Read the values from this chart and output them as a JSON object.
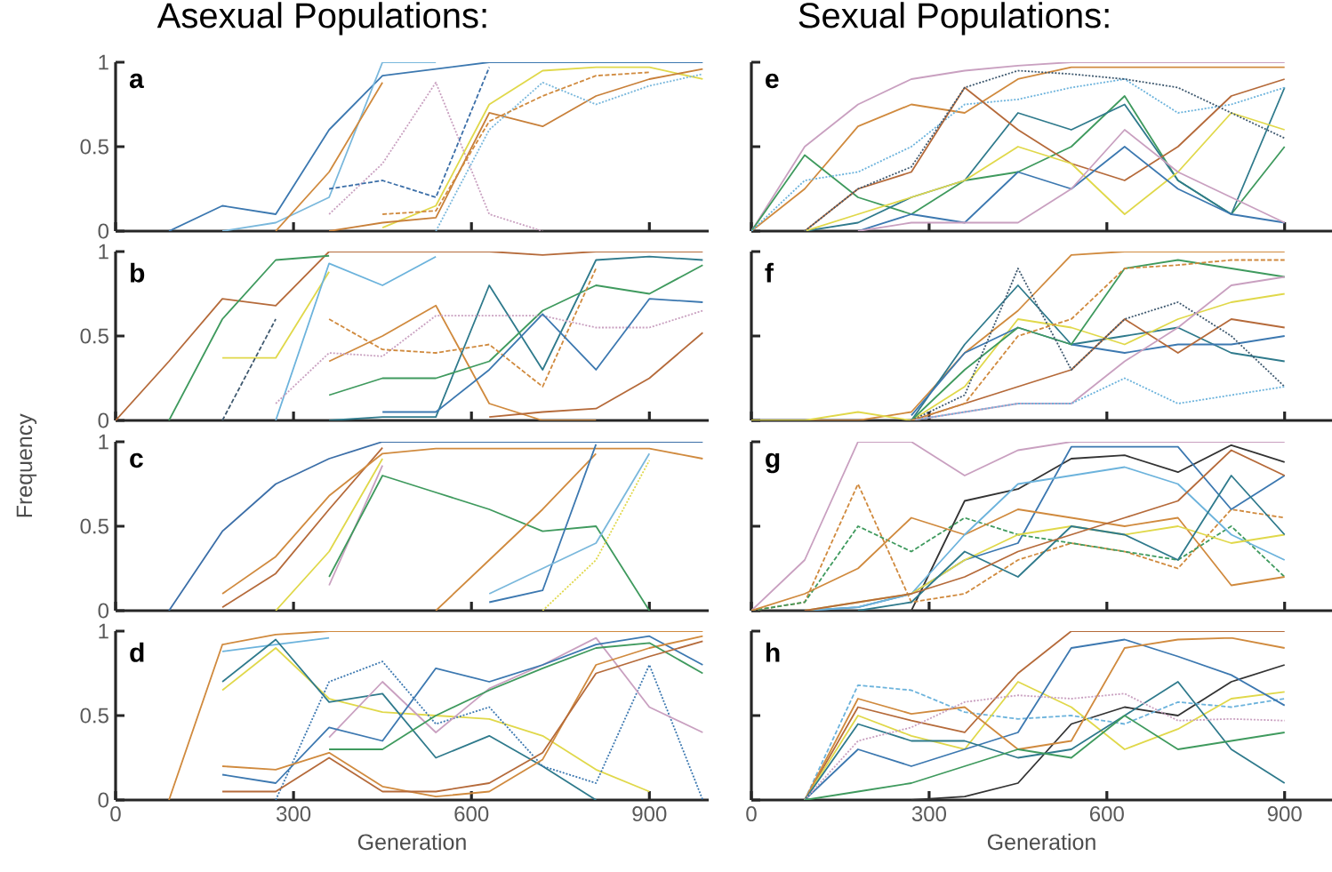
{
  "chart_data": [
    {
      "type": "line",
      "title": "Asexual Populations:",
      "annotations": [
        "a"
      ],
      "x": [
        90,
        180,
        270,
        360,
        450,
        540,
        630,
        720,
        810,
        900,
        990
      ],
      "xlim": [
        0,
        1000
      ],
      "ylim": [
        0,
        1
      ],
      "xticks": [
        0,
        300,
        600,
        900
      ],
      "yticks": [
        0,
        0.5,
        1
      ],
      "tick_labels": "y",
      "line_style": "solid",
      "series": [
        {
          "color": "#3c78b0",
          "values": [
            0,
            0.15,
            0.1,
            0.6,
            0.92,
            0.96,
            1,
            1,
            1,
            1,
            1
          ]
        },
        {
          "color": "#7ab8dc",
          "values": [
            null,
            0,
            0.05,
            0.2,
            1,
            1,
            null,
            null,
            null,
            null,
            null
          ]
        },
        {
          "color": "#d08a3e",
          "values": [
            null,
            null,
            0,
            0.35,
            0.88,
            null,
            null,
            null,
            null,
            null,
            null
          ]
        },
        {
          "color": "#c9a0c0",
          "line_style": "dotted",
          "values": [
            null,
            null,
            null,
            0.1,
            0.4,
            0.88,
            0.1,
            0,
            null,
            null,
            null
          ]
        },
        {
          "color": "#3c6fa8",
          "line_style": "dashed",
          "values": [
            null,
            null,
            null,
            0.25,
            0.3,
            0.2,
            0.97,
            null,
            null,
            null,
            null
          ]
        },
        {
          "color": "#e0d84a",
          "values": [
            null,
            null,
            null,
            null,
            0.02,
            0.15,
            0.75,
            0.95,
            0.97,
            0.97,
            0.9
          ]
        },
        {
          "color": "#c8803a",
          "values": [
            null,
            null,
            null,
            0,
            0.05,
            0.08,
            0.7,
            0.62,
            0.8,
            0.9,
            0.96
          ]
        },
        {
          "color": "#7ab8dc",
          "line_style": "dotted",
          "values": [
            null,
            null,
            null,
            null,
            null,
            0,
            0.6,
            0.88,
            0.75,
            0.86,
            0.93
          ]
        },
        {
          "color": "#d08a3e",
          "line_style": "dashed",
          "values": [
            null,
            null,
            null,
            null,
            0.1,
            0.12,
            0.65,
            0.8,
            0.92,
            0.94,
            null
          ]
        }
      ]
    },
    {
      "type": "line",
      "annotations": [
        "b"
      ],
      "ylabel": "Frequency",
      "x": [
        0,
        90,
        180,
        270,
        360,
        450,
        540,
        630,
        720,
        810,
        900,
        990
      ],
      "xlim": [
        0,
        1000
      ],
      "ylim": [
        0,
        1
      ],
      "xticks": [
        0,
        300,
        600,
        900
      ],
      "yticks": [
        0,
        0.5,
        1
      ],
      "tick_labels": "y",
      "line_style": "solid",
      "series": [
        {
          "color": "#b56a3a",
          "values": [
            0,
            0.35,
            0.72,
            0.68,
            1,
            1,
            1,
            1,
            0.98,
            1,
            1,
            1
          ]
        },
        {
          "color": "#3f9a5e",
          "values": [
            null,
            0,
            0.6,
            0.95,
            0.975,
            null,
            null,
            null,
            null,
            null,
            null,
            null
          ]
        },
        {
          "color": "#e0d84a",
          "values": [
            null,
            null,
            0.37,
            0.37,
            0.88,
            null,
            null,
            null,
            null,
            null,
            null,
            null
          ]
        },
        {
          "color": "#405a70",
          "line_style": "dashed",
          "values": [
            null,
            null,
            0,
            0.6,
            null,
            null,
            null,
            null,
            null,
            null,
            null,
            null
          ]
        },
        {
          "color": "#6cb3dc",
          "values": [
            null,
            null,
            null,
            0,
            0.93,
            0.8,
            0.97,
            null,
            null,
            null,
            null,
            null
          ]
        },
        {
          "color": "#d08a3e",
          "values": [
            null,
            null,
            null,
            null,
            0.35,
            0.5,
            0.68,
            0.1,
            0,
            0,
            null,
            null
          ]
        },
        {
          "color": "#2f7a8c",
          "values": [
            null,
            null,
            null,
            null,
            0,
            0.02,
            0.02,
            0.8,
            0.3,
            0.95,
            0.97,
            0.95
          ]
        },
        {
          "color": "#3f9a5e",
          "values": [
            null,
            null,
            null,
            null,
            0.15,
            0.25,
            0.25,
            0.35,
            0.65,
            0.8,
            0.75,
            0.92
          ]
        },
        {
          "color": "#b56a3a",
          "values": [
            null,
            null,
            null,
            null,
            null,
            null,
            null,
            0.02,
            0.05,
            0.07,
            0.25,
            0.52
          ]
        },
        {
          "color": "#c9a0c0",
          "line_style": "dotted",
          "values": [
            null,
            null,
            null,
            0.1,
            0.4,
            0.38,
            0.62,
            0.62,
            0.62,
            0.55,
            0.55,
            0.65
          ]
        },
        {
          "color": "#d08a3e",
          "line_style": "dashed",
          "values": [
            null,
            null,
            null,
            null,
            0.6,
            0.42,
            0.4,
            0.45,
            0.2,
            0.9,
            null,
            null
          ]
        },
        {
          "color": "#3c78b0",
          "values": [
            null,
            null,
            null,
            null,
            null,
            0.05,
            0.05,
            0.3,
            0.63,
            0.3,
            0.72,
            0.7
          ]
        }
      ]
    },
    {
      "type": "line",
      "annotations": [
        "c"
      ],
      "x": [
        90,
        180,
        270,
        360,
        450,
        540,
        630,
        720,
        810,
        900,
        990
      ],
      "xlim": [
        0,
        1000
      ],
      "ylim": [
        0,
        1
      ],
      "xticks": [
        0,
        300,
        600,
        900
      ],
      "yticks": [
        0,
        0.5,
        1
      ],
      "tick_labels": "y",
      "line_style": "solid",
      "series": [
        {
          "color": "#3c6fa8",
          "values": [
            0,
            0.47,
            0.75,
            0.9,
            1,
            1,
            1,
            1,
            1,
            1,
            1
          ]
        },
        {
          "color": "#b56a3a",
          "values": [
            null,
            0.02,
            0.22,
            0.6,
            0.965,
            null,
            null,
            null,
            null,
            null,
            null
          ]
        },
        {
          "color": "#d08a3e",
          "values": [
            null,
            0.1,
            0.32,
            0.68,
            0.93,
            0.96,
            0.96,
            0.96,
            0.96,
            0.96,
            0.9
          ]
        },
        {
          "color": "#e0d84a",
          "values": [
            null,
            null,
            0,
            0.35,
            0.9,
            null,
            null,
            null,
            null,
            null,
            null
          ]
        },
        {
          "color": "#c9a0c0",
          "values": [
            null,
            null,
            null,
            0.15,
            0.86,
            null,
            null,
            null,
            null,
            null,
            null
          ]
        },
        {
          "color": "#3f9a5e",
          "values": [
            null,
            null,
            null,
            0.2,
            0.8,
            0.7,
            0.6,
            0.47,
            0.5,
            0,
            null
          ]
        },
        {
          "color": "#d08a3e",
          "values": [
            null,
            null,
            null,
            null,
            null,
            0,
            0.3,
            0.6,
            0.93,
            null,
            null
          ]
        },
        {
          "color": "#3c78b0",
          "values": [
            null,
            null,
            null,
            null,
            null,
            null,
            0.05,
            0.12,
            0.985,
            null,
            null
          ]
        },
        {
          "color": "#7ab8dc",
          "values": [
            null,
            null,
            null,
            null,
            null,
            null,
            0.1,
            0.25,
            0.4,
            0.93,
            null
          ]
        },
        {
          "color": "#e0d84a",
          "line_style": "dotted",
          "values": [
            null,
            null,
            null,
            null,
            null,
            null,
            null,
            0,
            0.3,
            0.89,
            null
          ]
        }
      ]
    },
    {
      "type": "line",
      "annotations": [
        "d"
      ],
      "xlabel": "Generation",
      "x": [
        90,
        180,
        270,
        360,
        450,
        540,
        630,
        720,
        810,
        900,
        990
      ],
      "xlim": [
        0,
        1000
      ],
      "ylim": [
        0,
        1
      ],
      "xticks": [
        0,
        300,
        600,
        900
      ],
      "yticks": [
        0,
        0.5,
        1
      ],
      "line_style": "solid",
      "series": [
        {
          "color": "#d08a3e",
          "values": [
            0,
            0.92,
            0.98,
            1,
            1,
            1,
            1,
            1,
            1,
            1,
            1
          ]
        },
        {
          "color": "#6cb3dc",
          "values": [
            null,
            0.88,
            0.92,
            0.96,
            null,
            null,
            null,
            null,
            null,
            null,
            null
          ]
        },
        {
          "color": "#e0d84a",
          "values": [
            null,
            0.65,
            0.9,
            0.6,
            0.52,
            0.5,
            0.48,
            0.38,
            0.18,
            0.05,
            null
          ]
        },
        {
          "color": "#2f7a8c",
          "values": [
            null,
            0.7,
            0.95,
            0.58,
            0.63,
            0.25,
            0.38,
            0.2,
            0,
            null,
            null
          ]
        },
        {
          "color": "#3c78b0",
          "line_style": "dotted",
          "values": [
            null,
            null,
            0,
            0.7,
            0.82,
            0.45,
            0.55,
            0.2,
            0.1,
            0.8,
            0
          ]
        },
        {
          "color": "#c9a0c0",
          "values": [
            null,
            null,
            null,
            0.37,
            0.7,
            0.4,
            0.66,
            0.8,
            0.96,
            0.55,
            0.4
          ]
        },
        {
          "color": "#3c78b0",
          "values": [
            null,
            0.15,
            0.1,
            0.43,
            0.35,
            0.78,
            0.7,
            0.8,
            0.92,
            0.97,
            0.8
          ]
        },
        {
          "color": "#d08a3e",
          "values": [
            null,
            0.2,
            0.18,
            0.28,
            0.08,
            0.02,
            0.05,
            0.24,
            0.8,
            0.9,
            0.97
          ]
        },
        {
          "color": "#3f9a5e",
          "values": [
            null,
            null,
            null,
            0.3,
            0.3,
            0.5,
            0.65,
            0.78,
            0.9,
            0.93,
            0.75
          ]
        },
        {
          "color": "#b56a3a",
          "values": [
            null,
            0.05,
            0.05,
            0.25,
            0.05,
            0.05,
            0.1,
            0.28,
            0.75,
            0.85,
            0.94
          ]
        }
      ]
    },
    {
      "type": "line",
      "title": "Sexual Populations:",
      "annotations": [
        "e"
      ],
      "x": [
        0,
        90,
        180,
        270,
        360,
        450,
        540,
        630,
        720,
        810,
        900
      ],
      "xlim": [
        0,
        980
      ],
      "ylim": [
        0,
        1
      ],
      "xticks": [
        0,
        300,
        600,
        900
      ],
      "yticks": [
        0,
        0.5,
        1
      ],
      "tick_labels": false,
      "line_style": "solid",
      "series": [
        {
          "color": "#c9a0c0",
          "values": [
            0,
            0.5,
            0.75,
            0.9,
            0.95,
            0.98,
            1,
            1,
            1,
            1,
            1
          ]
        },
        {
          "color": "#d08a3e",
          "values": [
            0,
            0.25,
            0.62,
            0.75,
            0.7,
            0.9,
            0.97,
            0.97,
            0.97,
            0.97,
            0.97
          ]
        },
        {
          "color": "#3f9a5e",
          "values": [
            0,
            0.45,
            0.2,
            0.1,
            0.3,
            0.35,
            0.5,
            0.8,
            0.3,
            0.1,
            0.5
          ]
        },
        {
          "color": "#2f7a8c",
          "values": [
            null,
            0,
            0.05,
            0.2,
            0.3,
            0.7,
            0.6,
            0.75,
            0.3,
            0.1,
            0.85
          ]
        },
        {
          "color": "#6cb3dc",
          "line_style": "dotted",
          "values": [
            0,
            0.3,
            0.35,
            0.5,
            0.75,
            0.78,
            0.85,
            0.9,
            0.7,
            0.75,
            0.85
          ]
        },
        {
          "color": "#b56a3a",
          "values": [
            null,
            0,
            0.25,
            0.35,
            0.85,
            0.6,
            0.4,
            0.3,
            0.5,
            0.8,
            0.9
          ]
        },
        {
          "color": "#e0d84a",
          "values": [
            null,
            0,
            0.1,
            0.2,
            0.3,
            0.5,
            0.4,
            0.1,
            0.35,
            0.7,
            0.6
          ]
        },
        {
          "color": "#3c78b0",
          "values": [
            null,
            null,
            0,
            0.1,
            0.05,
            0.35,
            0.25,
            0.5,
            0.25,
            0.1,
            0.05
          ]
        },
        {
          "color": "#405a70",
          "line_style": "dotted",
          "values": [
            null,
            0,
            0.25,
            0.38,
            0.85,
            0.95,
            0.93,
            0.9,
            0.85,
            0.7,
            0.55
          ]
        },
        {
          "color": "#c9a0c0",
          "values": [
            null,
            null,
            0,
            0.05,
            0.05,
            0.05,
            0.25,
            0.6,
            0.35,
            0.2,
            0.05
          ]
        }
      ]
    },
    {
      "type": "line",
      "annotations": [
        "f"
      ],
      "x": [
        0,
        90,
        180,
        270,
        360,
        450,
        540,
        630,
        720,
        810,
        900
      ],
      "xlim": [
        0,
        980
      ],
      "ylim": [
        0,
        1
      ],
      "xticks": [
        0,
        300,
        600,
        900
      ],
      "yticks": [
        0,
        0.5,
        1
      ],
      "tick_labels": false,
      "line_style": "solid",
      "series": [
        {
          "color": "#d08a3e",
          "values": [
            0,
            0,
            0,
            0.05,
            0.4,
            0.65,
            0.98,
            1,
            1,
            1,
            1
          ]
        },
        {
          "color": "#2f7a8c",
          "values": [
            null,
            null,
            null,
            0,
            0.45,
            0.8,
            0.45,
            0.5,
            0.55,
            0.4,
            0.35
          ]
        },
        {
          "color": "#e0d84a",
          "values": [
            0,
            0,
            0.05,
            0,
            0.2,
            0.6,
            0.55,
            0.45,
            0.6,
            0.7,
            0.75
          ]
        },
        {
          "color": "#3c78b0",
          "values": [
            null,
            null,
            null,
            0.03,
            0.4,
            0.55,
            0.45,
            0.4,
            0.45,
            0.45,
            0.5
          ]
        },
        {
          "color": "#3f9a5e",
          "values": [
            null,
            null,
            null,
            0,
            0.3,
            0.55,
            0.45,
            0.9,
            0.95,
            0.9,
            0.85
          ]
        },
        {
          "color": "#b56a3a",
          "values": [
            null,
            null,
            null,
            0,
            0.1,
            0.2,
            0.3,
            0.6,
            0.4,
            0.6,
            0.55
          ]
        },
        {
          "color": "#405a70",
          "line_style": "dotted",
          "values": [
            null,
            null,
            null,
            0,
            0.15,
            0.9,
            0.3,
            0.6,
            0.7,
            0.5,
            0.2
          ]
        },
        {
          "color": "#c9a0c0",
          "values": [
            null,
            null,
            null,
            0,
            0.05,
            0.1,
            0.1,
            0.35,
            0.55,
            0.8,
            0.85
          ]
        },
        {
          "color": "#6cb3dc",
          "line_style": "dotted",
          "values": [
            null,
            null,
            null,
            0,
            0.05,
            0.1,
            0.1,
            0.25,
            0.1,
            0.15,
            0.2
          ]
        },
        {
          "color": "#d08a3e",
          "line_style": "dashed",
          "values": [
            null,
            null,
            null,
            0,
            0.1,
            0.5,
            0.6,
            0.9,
            0.92,
            0.95,
            0.95
          ]
        }
      ]
    },
    {
      "type": "line",
      "annotations": [
        "g"
      ],
      "x": [
        0,
        90,
        180,
        270,
        360,
        450,
        540,
        630,
        720,
        810,
        900
      ],
      "xlim": [
        0,
        980
      ],
      "ylim": [
        0,
        1
      ],
      "xticks": [
        0,
        300,
        600,
        900
      ],
      "yticks": [
        0,
        0.5,
        1
      ],
      "tick_labels": false,
      "line_style": "solid",
      "series": [
        {
          "color": "#c9a0c0",
          "values": [
            0,
            0.3,
            1,
            1,
            0.8,
            0.95,
            1,
            1,
            1,
            1,
            1
          ]
        },
        {
          "color": "#333333",
          "values": [
            0,
            0,
            0,
            0,
            0.65,
            0.72,
            0.9,
            0.92,
            0.82,
            0.98,
            0.88
          ]
        },
        {
          "color": "#d08a3e",
          "line_style": "dashed",
          "values": [
            0,
            0.05,
            0.75,
            0.05,
            0.1,
            0.3,
            0.4,
            0.35,
            0.25,
            0.6,
            0.55
          ]
        },
        {
          "color": "#3f9a5e",
          "line_style": "dashed",
          "values": [
            0,
            0.05,
            0.5,
            0.35,
            0.55,
            0.45,
            0.4,
            0.35,
            0.3,
            0.5,
            0.2
          ]
        },
        {
          "color": "#3c78b0",
          "values": [
            null,
            0,
            0.02,
            0.1,
            0.3,
            0.4,
            0.97,
            0.97,
            0.97,
            0.6,
            0.8
          ]
        },
        {
          "color": "#d08a3e",
          "values": [
            0,
            0.1,
            0.25,
            0.55,
            0.45,
            0.6,
            0.55,
            0.5,
            0.55,
            0.15,
            0.2
          ]
        },
        {
          "color": "#6cb3dc",
          "values": [
            null,
            0,
            0.02,
            0.1,
            0.45,
            0.75,
            0.8,
            0.85,
            0.75,
            0.45,
            0.3
          ]
        },
        {
          "color": "#e0d84a",
          "values": [
            null,
            0,
            0.05,
            0.1,
            0.3,
            0.45,
            0.5,
            0.45,
            0.5,
            0.4,
            0.45
          ]
        },
        {
          "color": "#2f7a8c",
          "values": [
            null,
            null,
            0,
            0.05,
            0.35,
            0.2,
            0.5,
            0.45,
            0.3,
            0.8,
            0.45
          ]
        },
        {
          "color": "#b56a3a",
          "values": [
            null,
            0,
            0.05,
            0.1,
            0.2,
            0.35,
            0.45,
            0.55,
            0.65,
            0.95,
            0.8
          ]
        }
      ]
    },
    {
      "type": "line",
      "annotations": [
        "h"
      ],
      "xlabel": "Generation",
      "x": [
        90,
        180,
        270,
        360,
        450,
        540,
        630,
        720,
        810,
        900
      ],
      "xlim": [
        0,
        980
      ],
      "ylim": [
        0,
        1
      ],
      "xticks": [
        0,
        300,
        600,
        900
      ],
      "yticks": [
        0,
        0.5,
        1
      ],
      "tick_labels": "x",
      "line_style": "solid",
      "series": [
        {
          "color": "#b56a3a",
          "values": [
            0,
            0.55,
            0.47,
            0.4,
            0.75,
            1,
            1,
            1,
            1,
            1
          ]
        },
        {
          "color": "#333333",
          "values": [
            null,
            null,
            0,
            0.02,
            0.1,
            0.45,
            0.55,
            0.5,
            0.7,
            0.8
          ]
        },
        {
          "color": "#6cb3dc",
          "line_style": "dashed",
          "values": [
            0,
            0.68,
            0.65,
            0.52,
            0.48,
            0.5,
            0.45,
            0.58,
            0.55,
            0.6
          ]
        },
        {
          "color": "#e0d84a",
          "values": [
            0,
            0.5,
            0.38,
            0.3,
            0.7,
            0.55,
            0.3,
            0.42,
            0.6,
            0.64
          ]
        },
        {
          "color": "#3c78b0",
          "values": [
            0,
            0.3,
            0.2,
            0.3,
            0.4,
            0.9,
            0.95,
            0.85,
            0.74,
            0.56
          ]
        },
        {
          "color": "#d08a3e",
          "values": [
            0,
            0.6,
            0.51,
            0.55,
            0.3,
            0.35,
            0.9,
            0.95,
            0.96,
            0.9
          ]
        },
        {
          "color": "#2f7a8c",
          "values": [
            0,
            0.45,
            0.35,
            0.35,
            0.25,
            0.3,
            0.5,
            0.7,
            0.3,
            0.1
          ]
        },
        {
          "color": "#c9a0c0",
          "line_style": "dotted",
          "values": [
            0,
            0.35,
            0.43,
            0.58,
            0.62,
            0.6,
            0.63,
            0.47,
            0.48,
            0.47
          ]
        },
        {
          "color": "#3f9a5e",
          "values": [
            0,
            0.05,
            0.1,
            0.2,
            0.3,
            0.25,
            0.5,
            0.3,
            0.35,
            0.4
          ]
        }
      ]
    }
  ]
}
